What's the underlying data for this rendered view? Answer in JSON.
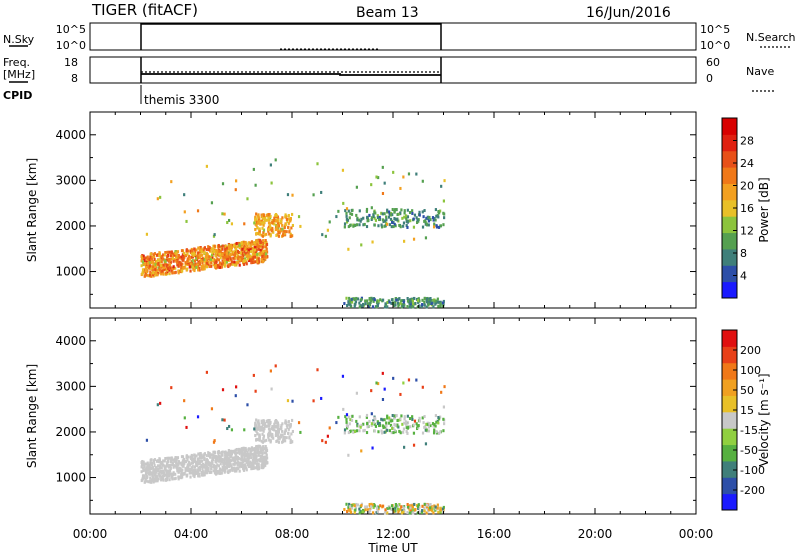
{
  "header": {
    "radar": "TIGER (fitACF)",
    "beam": "Beam 13",
    "date": "16/Jun/2016"
  },
  "strips": {
    "nsky_label": "N.Sky",
    "nsky_ticks": [
      "10^5",
      "10^0"
    ],
    "nsearch_label": "N.Search",
    "freq_label_1": "Freq.",
    "freq_label_2": "[MHz]",
    "freq_ticks": [
      "18",
      "8"
    ],
    "nave_ticks": [
      "60",
      "0"
    ],
    "nave_label": "Nave",
    "cpid_label": "CPID",
    "cpid_value": "themis 3300"
  },
  "xaxis": {
    "label": "Time UT",
    "ticks": [
      "00:00",
      "04:00",
      "08:00",
      "12:00",
      "16:00",
      "20:00",
      "00:00"
    ]
  },
  "panels": {
    "power": {
      "ylabel": "Slant Range [km]",
      "yticks": [
        "1000",
        "2000",
        "3000",
        "4000"
      ],
      "colorbar_label": "Power [dB]",
      "colorbar_ticks": [
        "4",
        "8",
        "12",
        "16",
        "20",
        "24",
        "28"
      ],
      "colors": [
        "#1a1aff",
        "#2d4fa8",
        "#3f7f7a",
        "#55a050",
        "#8cc43c",
        "#e8c028",
        "#f3a020",
        "#f07818",
        "#e85018",
        "#e02010",
        "#d80000"
      ]
    },
    "velocity": {
      "ylabel": "Slant Range [km]",
      "yticks": [
        "1000",
        "2000",
        "3000",
        "4000"
      ],
      "colorbar_label": "Velocity [m s⁻¹]",
      "colorbar_ticks": [
        "200",
        "100",
        "50",
        "15",
        "-15",
        "-50",
        "-100",
        "-200"
      ],
      "colors": [
        "#1a1aff",
        "#2d4fa8",
        "#3f7f7a",
        "#56b040",
        "#90d040",
        "#c8c8c8",
        "#e8c028",
        "#f0a020",
        "#f07818",
        "#e84018",
        "#e01010"
      ]
    }
  },
  "chart_data": {
    "type": "heatmap",
    "x_unit": "hours UT",
    "xlim": [
      0,
      24
    ],
    "ylim": [
      200,
      4500
    ],
    "y_unit": "km",
    "power_colorbar_range": [
      0,
      32
    ],
    "velocity_colorbar_range": [
      -250,
      250
    ],
    "data_interval": [
      2.0,
      14.0
    ],
    "cpid": "themis 3300",
    "freq_MHz_approx": 10,
    "nave_approx": 10,
    "scatter_regions": [
      {
        "name": "main band",
        "t": [
          2.0,
          7.0
        ],
        "range": [
          900,
          1600
        ],
        "power_db": [
          14,
          28
        ],
        "velocity": [
          -15,
          15
        ]
      },
      {
        "name": "upper band",
        "t": [
          6.5,
          8.0
        ],
        "range": [
          1800,
          2300
        ],
        "power_db": [
          14,
          24
        ],
        "velocity": [
          -15,
          15
        ]
      },
      {
        "name": "mid patches",
        "t": [
          10.0,
          14.0
        ],
        "range": [
          2000,
          2400
        ],
        "power_db": [
          4,
          12
        ],
        "velocity": [
          -15,
          50
        ]
      },
      {
        "name": "near range",
        "t": [
          10.0,
          14.0
        ],
        "range": [
          250,
          450
        ],
        "power_db": [
          4,
          12
        ],
        "velocity": [
          -50,
          50
        ]
      }
    ]
  }
}
